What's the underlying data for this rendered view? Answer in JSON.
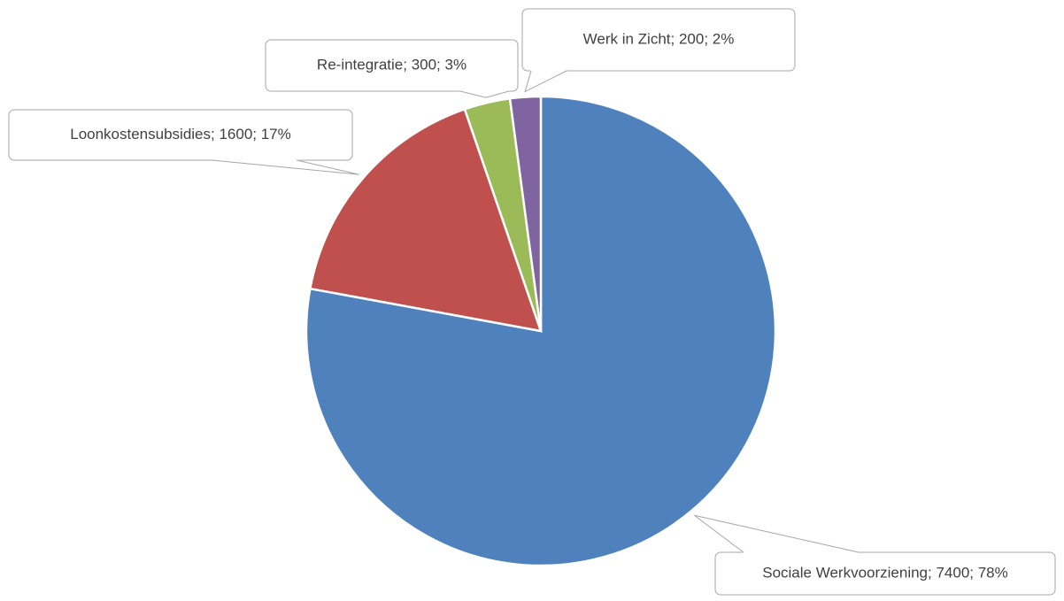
{
  "chart_data": {
    "type": "pie",
    "values": [
      7400,
      1600,
      300,
      200
    ],
    "value_labels": [
      "Sociale Werkvoorziening; 7400; 78%",
      "Loonkostensubsidies; 1600; 17%",
      "Re-integratie; 300; 3%",
      "Werk in Zicht; 200; 2%"
    ],
    "colors": [
      "#4f81bd",
      "#c0504d",
      "#9bbb59",
      "#8064a2"
    ]
  }
}
